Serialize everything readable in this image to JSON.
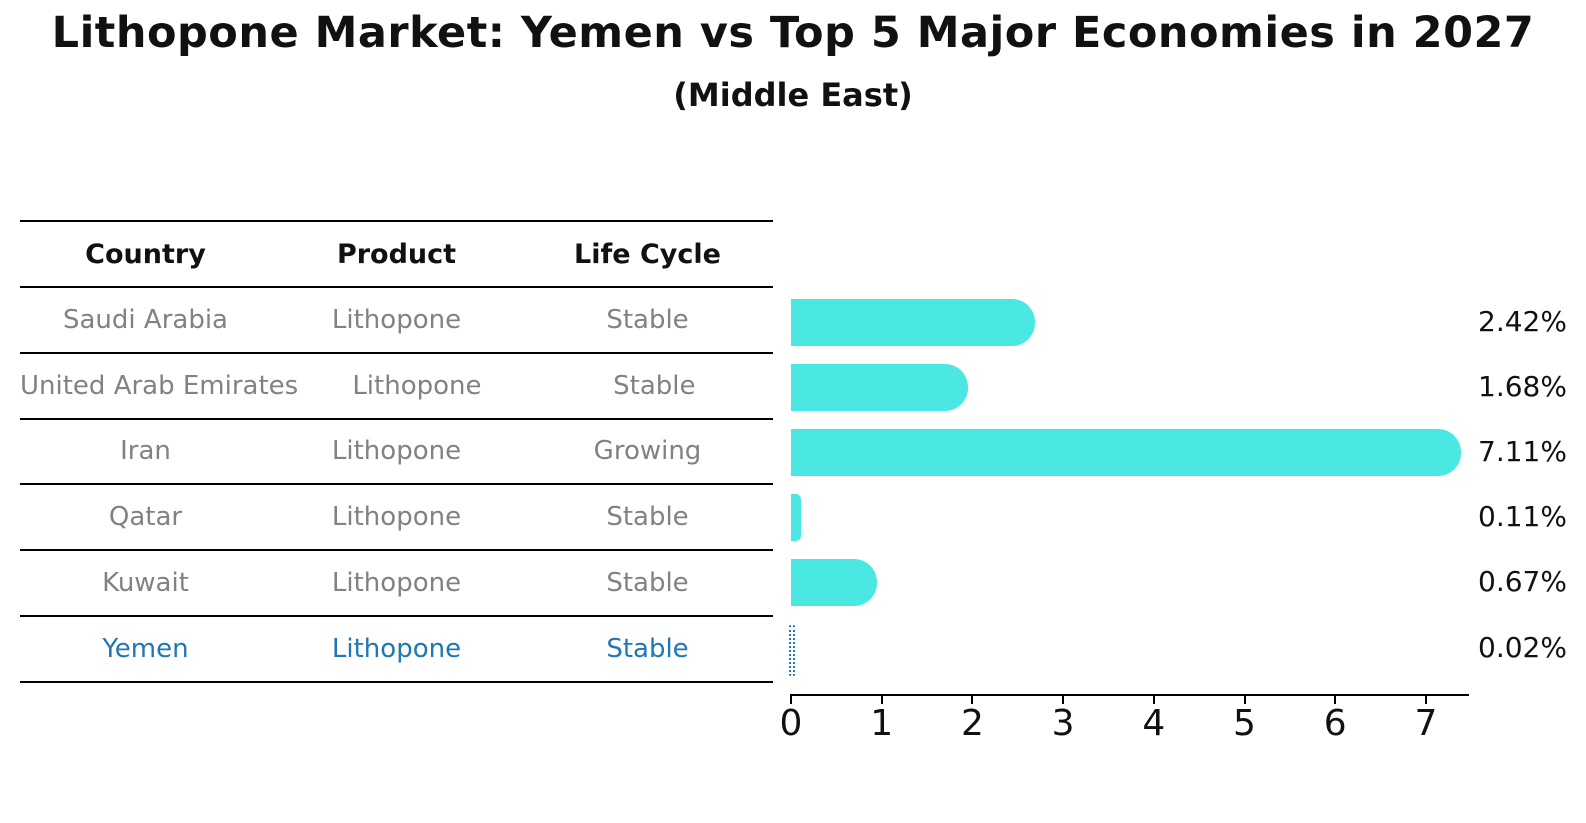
{
  "title": "Lithopone Market: Yemen vs Top 5 Major Economies in 2027",
  "subtitle": "(Middle East)",
  "table": {
    "columns": [
      "Country",
      "Product",
      "Life Cycle"
    ],
    "rows": [
      {
        "country": "Saudi Arabia",
        "product": "Lithopone",
        "life_cycle": "Stable",
        "highlighted": false
      },
      {
        "country": "United Arab Emirates",
        "product": "Lithopone",
        "life_cycle": "Stable",
        "highlighted": false
      },
      {
        "country": "Iran",
        "product": "Lithopone",
        "life_cycle": "Growing",
        "highlighted": false
      },
      {
        "country": "Qatar",
        "product": "Lithopone",
        "life_cycle": "Stable",
        "highlighted": false
      },
      {
        "country": "Kuwait",
        "product": "Lithopone",
        "life_cycle": "Stable",
        "highlighted": false
      },
      {
        "country": "Yemen",
        "product": "Lithopone",
        "life_cycle": "Stable",
        "highlighted": true
      }
    ]
  },
  "chart_data": {
    "type": "bar",
    "orientation": "horizontal",
    "title": "Lithopone Market: Yemen vs Top 5 Major Economies in 2027",
    "subtitle": "(Middle East)",
    "categories": [
      "Saudi Arabia",
      "United Arab Emirates",
      "Iran",
      "Qatar",
      "Kuwait",
      "Yemen"
    ],
    "values": [
      2.42,
      1.68,
      7.11,
      0.11,
      0.67,
      0.02
    ],
    "value_labels": [
      "2.42%",
      "1.68%",
      "7.11%",
      "0.11%",
      "0.67%",
      "0.02%"
    ],
    "xticks": [
      "0",
      "1",
      "2",
      "3",
      "4",
      "5",
      "6",
      "7"
    ],
    "xlim": [
      0,
      7.47
    ],
    "grid": false,
    "legend": "none",
    "highlight_category": "Yemen",
    "colors": {
      "bar": "#4AE7E3",
      "highlight": "#1F77B4",
      "axis": "#000000",
      "value_text": "#111111",
      "muted_text": "#828282"
    }
  }
}
